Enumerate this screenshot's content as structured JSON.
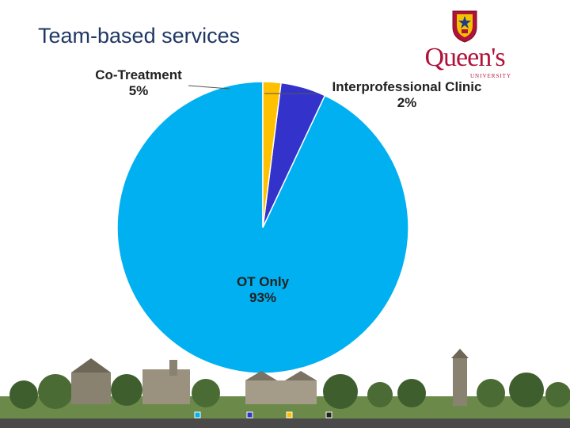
{
  "slide": {
    "title": "Team-based services"
  },
  "logo": {
    "name": "Queen's",
    "subtitle": "UNIVERSITY",
    "icon": "queens-crest-icon"
  },
  "chart_data": {
    "type": "pie",
    "slices": [
      {
        "label": "OT Only",
        "value": 93,
        "value_label": "93%",
        "color": "#00b0f0"
      },
      {
        "label": "Co-Treatment",
        "value": 5,
        "value_label": "5%",
        "color": "#3333cc"
      },
      {
        "label": "Interprofessional Clinic",
        "value": 2,
        "value_label": "2%",
        "color": "#ffc000"
      }
    ],
    "start_angle_deg": 0,
    "direction": "counterclockwise"
  },
  "legend_markers": [
    {
      "color": "#00b0f0"
    },
    {
      "color": "#3333cc"
    },
    {
      "color": "#ffc000"
    },
    {
      "color": "#222222"
    }
  ]
}
